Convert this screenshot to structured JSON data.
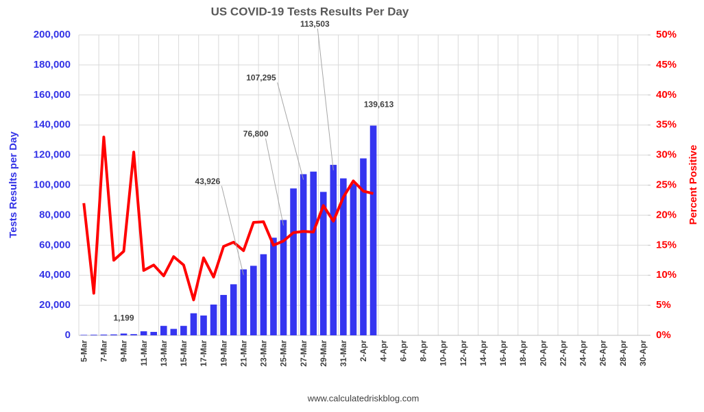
{
  "chart_data": {
    "type": "bar",
    "title": "US COVID-19 Tests Results Per Day",
    "y_label": "Tests Results per Day",
    "y2_label": "Percent Positive",
    "footer": "www.calculatedriskblog.com",
    "categories": [
      "5-Mar",
      null,
      "7-Mar",
      null,
      "9-Mar",
      null,
      "11-Mar",
      null,
      "13-Mar",
      null,
      "15-Mar",
      null,
      "17-Mar",
      null,
      "19-Mar",
      null,
      "21-Mar",
      null,
      "23-Mar",
      null,
      "25-Mar",
      null,
      "27-Mar",
      null,
      "29-Mar",
      null,
      "31-Mar",
      null,
      "2-Apr",
      null,
      "4-Apr",
      null,
      "6-Apr",
      null,
      "8-Apr",
      null,
      "10-Apr",
      null,
      "12-Apr",
      null,
      "14-Apr",
      null,
      "16-Apr",
      null,
      "18-Apr",
      null,
      "20-Apr",
      null,
      "22-Apr",
      null,
      "24-Apr",
      null,
      "26-Apr",
      null,
      "28-Apr",
      null,
      "30-Apr"
    ],
    "series": [
      {
        "name": "Tests Results per Day",
        "color": "#3535f0",
        "type": "bar",
        "values": [
          300,
          400,
          500,
          600,
          1199,
          800,
          2700,
          2300,
          6300,
          4300,
          6300,
          14700,
          13200,
          20500,
          26900,
          34000,
          43926,
          46300,
          54000,
          65000,
          76800,
          97800,
          107295,
          109000,
          95500,
          113503,
          104500,
          101000,
          117800,
          139613,
          null,
          null,
          null,
          null,
          null,
          null,
          null,
          null,
          null,
          null,
          null,
          null,
          null,
          null,
          null,
          null,
          null,
          null,
          null,
          null,
          null,
          null,
          null,
          null,
          null,
          null,
          null
        ],
        "value_labels": [
          null,
          null,
          null,
          null,
          "1,199",
          null,
          null,
          null,
          null,
          null,
          null,
          null,
          null,
          null,
          null,
          null,
          "43,926",
          null,
          null,
          null,
          "76,800",
          null,
          "107,295",
          null,
          null,
          "113,503",
          null,
          null,
          null,
          "139,613",
          null,
          null,
          null,
          null,
          null,
          null,
          null,
          null,
          null,
          null,
          null,
          null,
          null,
          null,
          null,
          null,
          null,
          null,
          null,
          null,
          null,
          null,
          null,
          null,
          null,
          null,
          null
        ]
      },
      {
        "name": "Percent Positive",
        "color": "#ff0000",
        "type": "line",
        "axis": "y2",
        "values": [
          22,
          7,
          33,
          12.5,
          14,
          30.5,
          10.8,
          11.7,
          9.9,
          13.1,
          11.7,
          5.9,
          12.9,
          9.7,
          14.8,
          15.5,
          14.1,
          18.8,
          18.9,
          15,
          15.7,
          17.1,
          17.3,
          17.2,
          21.6,
          19,
          23,
          25.7,
          24,
          23.6,
          null,
          null,
          null,
          null,
          null,
          null,
          null,
          null,
          null,
          null,
          null,
          null,
          null,
          null,
          null,
          null,
          null,
          null,
          null,
          null,
          null,
          null,
          null,
          null,
          null,
          null,
          null
        ]
      }
    ],
    "ylim": [
      0,
      200000
    ],
    "yticks": [
      0,
      {
        "value": 20000,
        "label": "20,000"
      },
      {
        "value": 40000,
        "label": "40,000"
      },
      {
        "value": 60000,
        "label": "60,000"
      },
      {
        "value": 80000,
        "label": "80,000"
      },
      {
        "value": 100000,
        "label": "100,000"
      },
      {
        "value": 120000,
        "label": "120,000"
      },
      {
        "value": 140000,
        "label": "140,000"
      },
      {
        "value": 160000,
        "label": "160,000"
      },
      {
        "value": 180000,
        "label": "180,000"
      },
      {
        "value": 200000,
        "label": "200,000"
      }
    ],
    "y2lim": [
      0,
      50
    ],
    "y2ticks": [
      {
        "value": 0,
        "label": "0%"
      },
      {
        "value": 5,
        "label": "5%"
      },
      {
        "value": 10,
        "label": "10%"
      },
      {
        "value": 15,
        "label": "15%"
      },
      {
        "value": 20,
        "label": "20%"
      },
      {
        "value": 25,
        "label": "25%"
      },
      {
        "value": 30,
        "label": "30%"
      },
      {
        "value": 35,
        "label": "35%"
      },
      {
        "value": 40,
        "label": "40%"
      },
      {
        "value": 45,
        "label": "45%"
      },
      {
        "value": 50,
        "label": "50%"
      }
    ],
    "grid": true
  }
}
